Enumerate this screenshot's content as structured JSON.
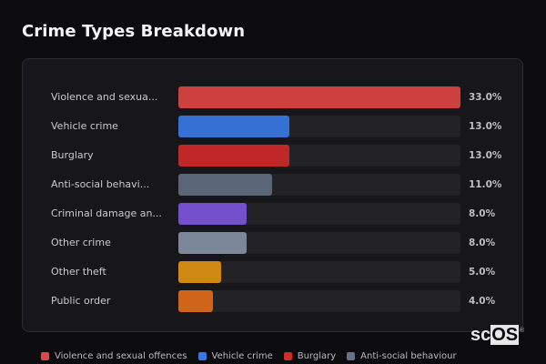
{
  "header": {
    "title": "Crime Types Breakdown"
  },
  "chart_data": {
    "type": "bar",
    "orientation": "horizontal",
    "title": "Crime Types Breakdown",
    "xlabel": "",
    "ylabel": "",
    "unit": "%",
    "xlim": [
      0,
      33
    ],
    "grid": false,
    "legend_position": "bottom",
    "categories": [
      "Violence and sexual offences",
      "Vehicle crime",
      "Burglary",
      "Anti-social behaviour",
      "Criminal damage and arson",
      "Other crime",
      "Other theft",
      "Public order"
    ],
    "display_labels": [
      "Violence and sexua...",
      "Vehicle crime",
      "Burglary",
      "Anti-social behavi...",
      "Criminal damage an...",
      "Other crime",
      "Other theft",
      "Public order"
    ],
    "values": [
      33.0,
      13.0,
      13.0,
      11.0,
      8.0,
      8.0,
      5.0,
      4.0
    ],
    "value_labels": [
      "33.0%",
      "13.0%",
      "13.0%",
      "11.0%",
      "8.0%",
      "8.0%",
      "5.0%",
      "4.0%"
    ],
    "colors": [
      "#cc4040",
      "#3570d4",
      "#c02828",
      "#5a6578",
      "#7550cc",
      "#7c879a",
      "#d08a14",
      "#d06418"
    ]
  },
  "legend": [
    {
      "label": "Violence and sexual offences",
      "color": "#e04848"
    },
    {
      "label": "Vehicle crime",
      "color": "#3a78e0"
    },
    {
      "label": "Burglary",
      "color": "#d42c2c"
    },
    {
      "label": "Anti-social behaviour",
      "color": "#66718a"
    }
  ],
  "watermark": {
    "prefix": "sc",
    "boxed": "OS",
    "mark": "®"
  }
}
